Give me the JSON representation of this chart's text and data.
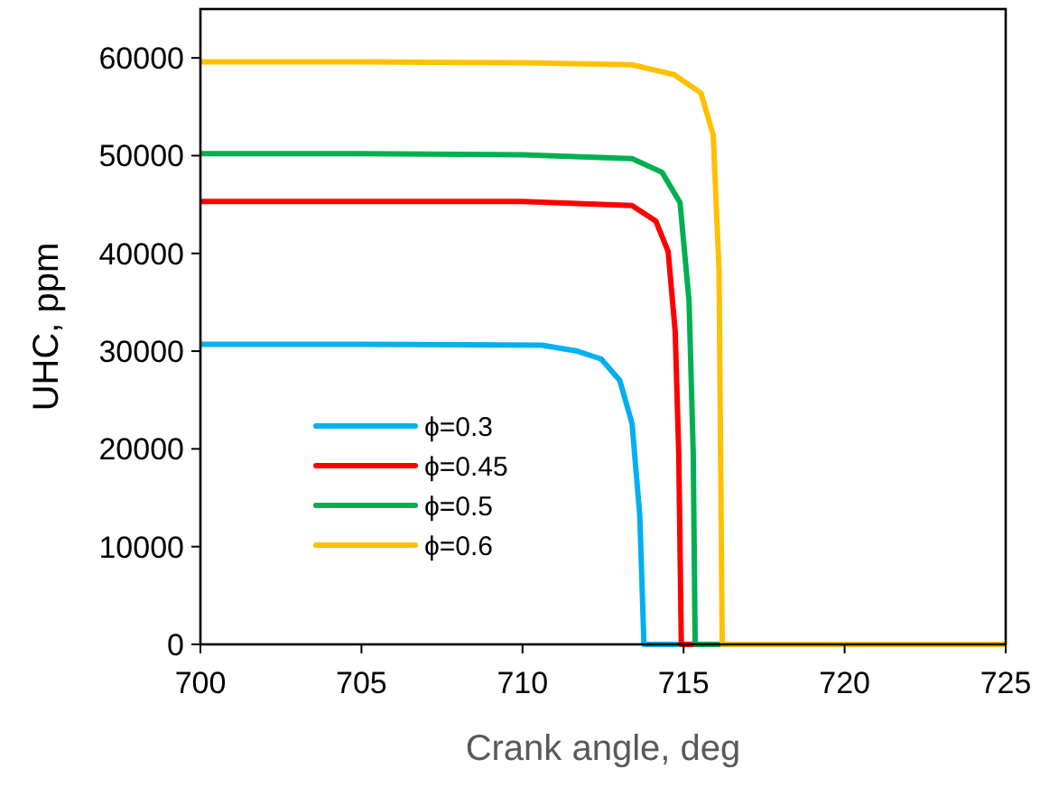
{
  "chart_data": {
    "type": "line",
    "xlabel": "Crank angle, deg",
    "ylabel": "UHC, ppm",
    "xlim": [
      700,
      725
    ],
    "ylim": [
      0,
      65000
    ],
    "xticks": [
      700,
      705,
      710,
      715,
      720,
      725
    ],
    "yticks": [
      0,
      10000,
      20000,
      30000,
      40000,
      50000,
      60000
    ],
    "grid": false,
    "legend": "left",
    "marker": "none",
    "line_style": "solid",
    "series": [
      {
        "name": "ϕ=0.3",
        "color": "#00b0f0",
        "x": [
          700,
          705,
          710.6,
          711.7,
          712.44,
          713.02,
          713.4,
          713.64,
          713.77,
          725
        ],
        "values": [
          30700,
          30700,
          30600,
          30000,
          29200,
          27000,
          22600,
          13200,
          0,
          0
        ]
      },
      {
        "name": "ϕ=0.45",
        "color": "#ff0000",
        "x": [
          700,
          705,
          710,
          713.4,
          714.14,
          714.52,
          714.74,
          714.85,
          714.93,
          725
        ],
        "values": [
          45300,
          45300,
          45300,
          44900,
          43300,
          40200,
          32000,
          19500,
          0,
          0
        ]
      },
      {
        "name": "ϕ=0.5",
        "color": "#00b050",
        "x": [
          700,
          705,
          710,
          713.4,
          714.33,
          714.89,
          715.17,
          715.3,
          715.36,
          725
        ],
        "values": [
          50200,
          50200,
          50100,
          49700,
          48300,
          45200,
          35100,
          19500,
          0,
          0
        ]
      },
      {
        "name": "ϕ=0.6",
        "color": "#ffc000",
        "x": [
          700,
          705,
          710,
          713.4,
          714.7,
          715.54,
          715.92,
          716.1,
          716.2,
          725
        ],
        "values": [
          59600,
          59600,
          59500,
          59300,
          58300,
          56400,
          52100,
          38300,
          0,
          0
        ]
      }
    ]
  }
}
